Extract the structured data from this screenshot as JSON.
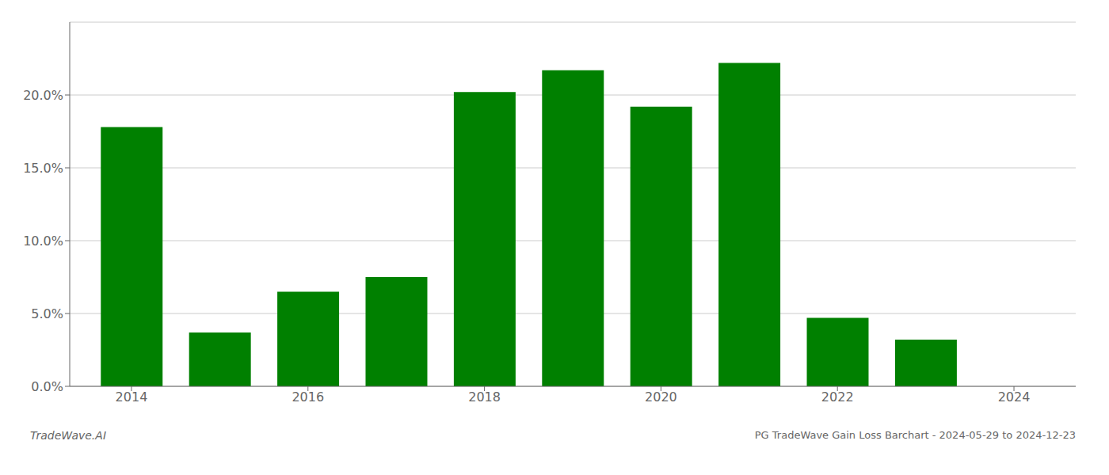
{
  "chart_data": {
    "type": "bar",
    "title": "PG TradeWave Gain Loss Barchart - 2024-05-29 to 2024-12-23",
    "annotations": [
      "TradeWave.AI"
    ],
    "x": [
      2014,
      2015,
      2016,
      2017,
      2018,
      2019,
      2020,
      2021,
      2022,
      2023
    ],
    "values": [
      0.178,
      0.037,
      0.065,
      0.075,
      0.202,
      0.217,
      0.192,
      0.222,
      0.047,
      0.032
    ],
    "color": "#008000",
    "xlim": [
      2013.3,
      2024.7
    ],
    "xticks": [
      2014,
      2016,
      2018,
      2020,
      2022,
      2024
    ],
    "ylim": [
      0,
      0.25
    ],
    "yticks": [
      {
        "value": 0.0,
        "label": "0.0%"
      },
      {
        "value": 0.05,
        "label": "5.0%"
      },
      {
        "value": 0.1,
        "label": "10.0%"
      },
      {
        "value": 0.15,
        "label": "15.0%"
      },
      {
        "value": 0.2,
        "label": "20.0%"
      }
    ],
    "grid": true
  }
}
